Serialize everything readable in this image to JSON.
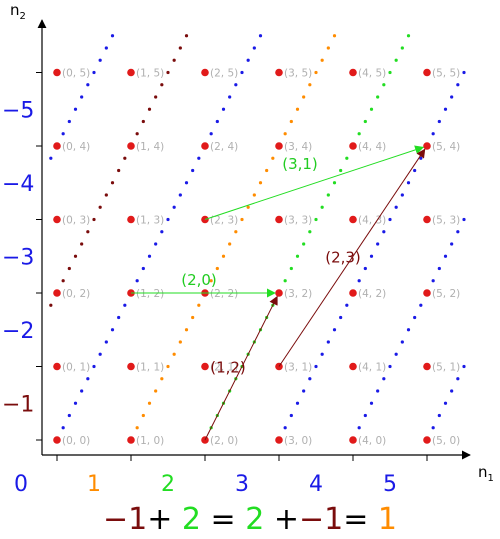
{
  "axes": {
    "x_label": "n",
    "x_label_sub": "1",
    "y_label": "n",
    "y_label_sub": "2",
    "x_categories": [
      "0",
      "1",
      "2",
      "3",
      "4",
      "5"
    ],
    "y_categories": [
      "−1",
      "−2",
      "−3",
      "−4",
      "−5"
    ]
  },
  "lattice": {
    "n1": [
      0,
      1,
      2,
      3,
      4,
      5
    ],
    "n2": [
      0,
      1,
      2,
      3,
      4,
      5
    ],
    "point_color": "#e11a1a",
    "label_color": "#b0b0b0"
  },
  "category_colors": {
    "0": "#1a1ae6",
    "1": "#ff8c00",
    "2": "#22dd22",
    "3": "#1a1ae6",
    "4": "#1a1ae6",
    "5": "#1a1ae6",
    "-1": "#7a0c0c",
    "-2": "#1a1ae6",
    "-3": "#1a1ae6",
    "-4": "#1a1ae6",
    "-5": "#1a1ae6"
  },
  "line_colors": {
    "blue": "#1a1ae6",
    "maroon": "#7a0c0c",
    "orange": "#ff8c00",
    "green": "#22dd22"
  },
  "dotted_lines": [
    {
      "c": -5,
      "color": "blue"
    },
    {
      "c": -4,
      "color": "blue"
    },
    {
      "c": -3,
      "color": "blue"
    },
    {
      "c": -2,
      "color": "blue"
    },
    {
      "c": -1,
      "color": "maroon"
    },
    {
      "c": 0,
      "color": "blue"
    },
    {
      "c": 1,
      "color": "orange"
    },
    {
      "c": 2,
      "color": "green"
    },
    {
      "c": 3,
      "color": "blue"
    },
    {
      "c": 4,
      "color": "blue"
    },
    {
      "c": 5,
      "color": "blue"
    }
  ],
  "vectors": [
    {
      "label": "(2,0)",
      "from": [
        1,
        2
      ],
      "to": [
        3,
        2
      ],
      "color": "#22dd22",
      "label_color": "#22cc22"
    },
    {
      "label": "(3,1)",
      "from": [
        2,
        3
      ],
      "to": [
        5,
        4
      ],
      "color": "#22dd22",
      "label_color": "#22cc22"
    },
    {
      "label": "(1,2)",
      "from": [
        2,
        0
      ],
      "to": [
        3,
        2
      ],
      "color": "#7a0c0c",
      "label_color": "#7a0c0c"
    },
    {
      "label": "(2,3)",
      "from": [
        3,
        1
      ],
      "to": [
        5,
        4
      ],
      "color": "#7a0c0c",
      "label_color": "#7a0c0c"
    }
  ],
  "equation": [
    {
      "text": "−1",
      "color": "#7a0c0c"
    },
    {
      "text": "+ ",
      "color": "#000000"
    },
    {
      "text": "2",
      "color": "#22dd22"
    },
    {
      "text": " = ",
      "color": "#000000"
    },
    {
      "text": "2",
      "color": "#22dd22"
    },
    {
      "text": " +",
      "color": "#000000"
    },
    {
      "text": "−1",
      "color": "#7a0c0c"
    },
    {
      "text": "= ",
      "color": "#000000"
    },
    {
      "text": "1",
      "color": "#ff8c00"
    }
  ]
}
